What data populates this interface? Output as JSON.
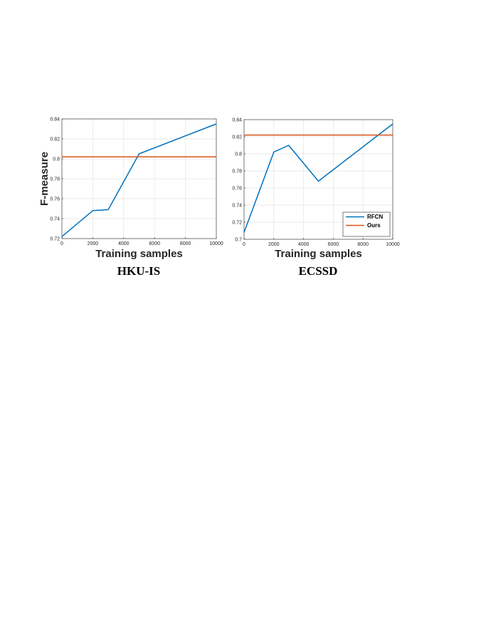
{
  "colors": {
    "RFCN": "#0072bd",
    "Ours": "#d95319"
  },
  "chart_data": [
    {
      "type": "line",
      "title": "HKU-IS",
      "xlabel": "Training samples",
      "ylabel": "F-measure",
      "xlim": [
        0,
        10000
      ],
      "ylim": [
        0.72,
        0.84
      ],
      "xticks": [
        0,
        2000,
        4000,
        6000,
        8000,
        10000
      ],
      "yticks": [
        0.72,
        0.74,
        0.76,
        0.78,
        0.8,
        0.82,
        0.84
      ],
      "xtick_labels": [
        "0",
        "2000",
        "4000",
        "6000",
        "8000",
        "10000"
      ],
      "ytick_labels": [
        "0.72",
        "0.74",
        "0.76",
        "0.78",
        "0.8",
        "0.82",
        "0.84"
      ],
      "grid": true,
      "legend": null,
      "series": [
        {
          "key": "RFCN",
          "x": [
            0,
            2000,
            3000,
            5000,
            10000
          ],
          "y": [
            0.722,
            0.748,
            0.749,
            0.805,
            0.835
          ]
        },
        {
          "key": "Ours",
          "x": [
            0,
            10000
          ],
          "y": [
            0.802,
            0.802
          ]
        }
      ]
    },
    {
      "type": "line",
      "title": "ECSSD",
      "xlabel": "Training samples",
      "ylabel": "",
      "xlim": [
        0,
        10000
      ],
      "ylim": [
        0.7,
        0.84
      ],
      "xticks": [
        0,
        2000,
        4000,
        6000,
        8000,
        10000
      ],
      "yticks": [
        0.7,
        0.72,
        0.74,
        0.76,
        0.78,
        0.8,
        0.82,
        0.84
      ],
      "xtick_labels": [
        "0",
        "2000",
        "4000",
        "6000",
        "8000",
        "10000"
      ],
      "ytick_labels": [
        "0.7",
        "0.72",
        "0.74",
        "0.76",
        "0.78",
        "0.8",
        "0.82",
        "0.84"
      ],
      "grid": true,
      "legend": "bottom-right",
      "series": [
        {
          "key": "RFCN",
          "name": "RFCN",
          "x": [
            0,
            2000,
            3000,
            5000,
            10000
          ],
          "y": [
            0.708,
            0.802,
            0.81,
            0.768,
            0.835
          ]
        },
        {
          "key": "Ours",
          "name": "Ours",
          "x": [
            0,
            10000
          ],
          "y": [
            0.822,
            0.822
          ]
        }
      ]
    }
  ]
}
